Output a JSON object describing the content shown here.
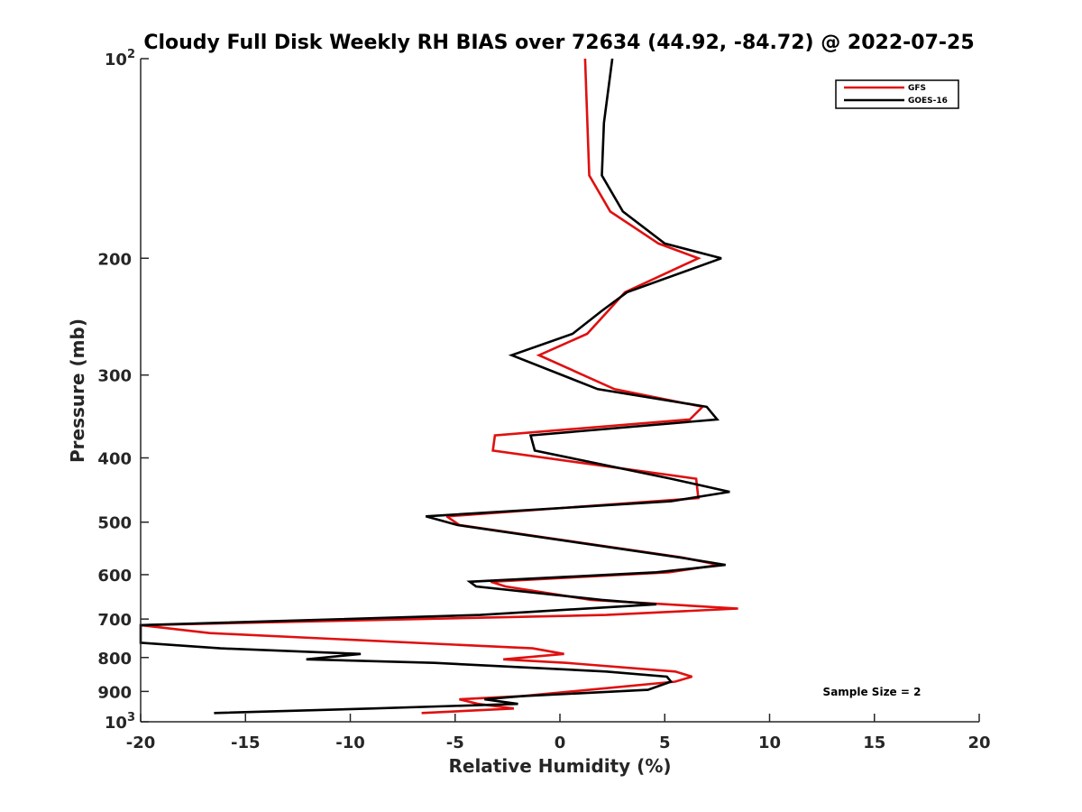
{
  "chart_data": {
    "type": "line",
    "title": "Cloudy Full Disk Weekly RH BIAS over 72634 (44.92, -84.72) @ 2022-07-25",
    "xlabel": "Relative Humidity (%)",
    "ylabel": "Pressure (mb)",
    "xlim": [
      -20,
      20
    ],
    "ylim": [
      100,
      1000
    ],
    "y_scale": "log",
    "y_reversed": true,
    "grid": false,
    "legend_position": "top-right",
    "x_ticks": [
      {
        "value": -20,
        "label": "-20"
      },
      {
        "value": -15,
        "label": "-15"
      },
      {
        "value": -10,
        "label": "-10"
      },
      {
        "value": -5,
        "label": "-5"
      },
      {
        "value": 0,
        "label": "0"
      },
      {
        "value": 5,
        "label": "5"
      },
      {
        "value": 10,
        "label": "10"
      },
      {
        "value": 15,
        "label": "15"
      },
      {
        "value": 20,
        "label": "20"
      }
    ],
    "y_ticks": [
      {
        "value": 100,
        "label": "",
        "base": "10",
        "exp": "2"
      },
      {
        "value": 200,
        "label": "200"
      },
      {
        "value": 300,
        "label": "300"
      },
      {
        "value": 400,
        "label": "400"
      },
      {
        "value": 500,
        "label": "500"
      },
      {
        "value": 600,
        "label": "600"
      },
      {
        "value": 700,
        "label": "700"
      },
      {
        "value": 800,
        "label": "800"
      },
      {
        "value": 900,
        "label": "900"
      },
      {
        "value": 1000,
        "label": "",
        "base": "10",
        "exp": "3"
      }
    ],
    "annotation": "Sample Size = 2",
    "series": [
      {
        "name": "GFS",
        "color": "#e01010",
        "points": [
          [
            1.2,
            100
          ],
          [
            1.4,
            150
          ],
          [
            2.4,
            170
          ],
          [
            4.7,
            190
          ],
          [
            6.6,
            200
          ],
          [
            3.1,
            225
          ],
          [
            2.3,
            240
          ],
          [
            1.3,
            260
          ],
          [
            -1.0,
            280
          ],
          [
            2.6,
            315
          ],
          [
            6.8,
            335
          ],
          [
            6.2,
            350
          ],
          [
            -3.1,
            370
          ],
          [
            -3.2,
            390
          ],
          [
            6.5,
            430
          ],
          [
            6.6,
            460
          ],
          [
            -5.4,
            490
          ],
          [
            -4.8,
            505
          ],
          [
            5.8,
            565
          ],
          [
            7.6,
            580
          ],
          [
            5.2,
            595
          ],
          [
            -3.3,
            615
          ],
          [
            -2.6,
            625
          ],
          [
            1.5,
            655
          ],
          [
            8.5,
            675
          ],
          [
            2.2,
            690
          ],
          [
            -20.0,
            715
          ],
          [
            -16.7,
            735
          ],
          [
            -1.3,
            775
          ],
          [
            0.2,
            790
          ],
          [
            -2.7,
            805
          ],
          [
            0.3,
            815
          ],
          [
            5.5,
            840
          ],
          [
            6.3,
            855
          ],
          [
            5.5,
            870
          ],
          [
            -1.8,
            915
          ],
          [
            -4.8,
            925
          ],
          [
            -3.9,
            940
          ],
          [
            -2.2,
            955
          ],
          [
            -6.6,
            970
          ]
        ]
      },
      {
        "name": "GOES-16",
        "color": "#000000",
        "points": [
          [
            2.5,
            100
          ],
          [
            2.1,
            125
          ],
          [
            2.0,
            150
          ],
          [
            3.0,
            170
          ],
          [
            5.0,
            190
          ],
          [
            7.7,
            200
          ],
          [
            3.2,
            225
          ],
          [
            2.0,
            240
          ],
          [
            0.6,
            260
          ],
          [
            -2.3,
            280
          ],
          [
            1.8,
            315
          ],
          [
            7.0,
            335
          ],
          [
            7.5,
            350
          ],
          [
            -1.4,
            370
          ],
          [
            -1.2,
            390
          ],
          [
            5.3,
            430
          ],
          [
            8.1,
            450
          ],
          [
            5.3,
            465
          ],
          [
            -6.4,
            490
          ],
          [
            -4.9,
            505
          ],
          [
            5.7,
            565
          ],
          [
            7.9,
            580
          ],
          [
            4.6,
            595
          ],
          [
            -4.3,
            615
          ],
          [
            -4.0,
            625
          ],
          [
            2.0,
            655
          ],
          [
            4.6,
            665
          ],
          [
            -3.8,
            690
          ],
          [
            -20.0,
            715
          ],
          [
            -20.0,
            760
          ],
          [
            -16.2,
            775
          ],
          [
            -9.5,
            790
          ],
          [
            -12.1,
            805
          ],
          [
            -6.0,
            815
          ],
          [
            2.2,
            840
          ],
          [
            5.1,
            855
          ],
          [
            5.3,
            870
          ],
          [
            4.2,
            895
          ],
          [
            -1.8,
            915
          ],
          [
            -3.6,
            925
          ],
          [
            -2.0,
            940
          ],
          [
            -9.0,
            955
          ],
          [
            -16.5,
            970
          ]
        ]
      }
    ]
  }
}
